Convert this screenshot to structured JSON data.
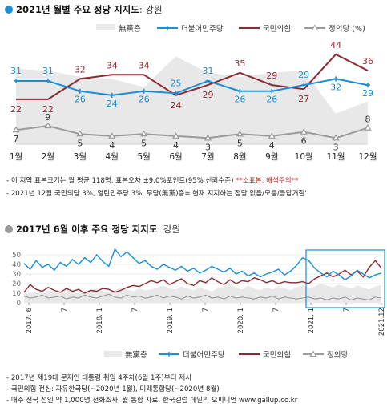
{
  "section1": {
    "title": "2021년 월별 주요 정당 지지도",
    "title_suffix": ": 강원",
    "title_dot_color": "#1a8fd8"
  },
  "section2": {
    "title": "2017년 6월 이후 주요 정당 지지도",
    "title_suffix": ": 강원",
    "title_dot_color": "#9a9a9a"
  },
  "notes1": {
    "line1_main": "- 이 지역 표본크기는 월 평균 118명, 표본오차 ±9.0%포인트(95% 신뢰수준) ",
    "line1_red": "**소표본, 해석주의**",
    "line2": "- 2021년 12월 국민의당 3%, 열린민주당 3%. 무당(無黨)층='현재 지지하는 정당 없음/모름/응답거절'"
  },
  "notes2": {
    "line1": "- 2017년 제19대 문재인 대통령 취임 4주차(6월 1주)부터 제시",
    "line2": "- 국민의힘 전신: 자유한국당(~2020년 1월), 미래통합당(~2020년 8월)",
    "line3": "- 매주 전국 성인 약 1,000명 전화조사, 월 통합 자료. 한국갤럽 데일리 오피니언 www.gallup.co.kr"
  },
  "colors": {
    "none": "#e8e8e8",
    "dem": "#1a8fd8",
    "ppp": "#8b2b34",
    "justice": "#9a9a9a"
  },
  "chart_data": [
    {
      "type": "line",
      "categories": [
        "1월",
        "2월",
        "3월",
        "4월",
        "5월",
        "6월",
        "7월",
        "8월",
        "9월",
        "10월",
        "11월",
        "12월"
      ],
      "legend_position": "top-right",
      "series": [
        {
          "name": "無黨층",
          "style": "area",
          "values": [
            37,
            36,
            33,
            32,
            28,
            43,
            35,
            33,
            35,
            36,
            15,
            21
          ]
        },
        {
          "name": "더불어민주당",
          "values": [
            31,
            31,
            26,
            24,
            26,
            25,
            31,
            26,
            26,
            29,
            32,
            29
          ]
        },
        {
          "name": "국민의힘",
          "values": [
            22,
            22,
            32,
            34,
            34,
            24,
            29,
            35,
            29,
            27,
            44,
            36
          ]
        },
        {
          "name": "정의당 (%)",
          "values": [
            7,
            9,
            5,
            4,
            5,
            4,
            3,
            5,
            4,
            6,
            3,
            8
          ]
        }
      ]
    },
    {
      "type": "line",
      "ylim": [
        0,
        50
      ],
      "yticks": [
        0,
        10,
        20,
        30,
        40,
        50
      ],
      "x_tick_labels": [
        "2017. 6",
        "7",
        "2018. 1",
        "7",
        "2019. 1",
        "7",
        "2020. 1",
        "7",
        "2021. 1",
        "7",
        "2021.12"
      ],
      "legend_position": "bottom",
      "highlight": "2021. 1 – 2021.12",
      "series": [
        {
          "name": "無黨층",
          "style": "area",
          "values": [
            10,
            9,
            12,
            10,
            13,
            11,
            9,
            14,
            12,
            10,
            11,
            13,
            15,
            12,
            11,
            13,
            16,
            14,
            12,
            15,
            13,
            14,
            16,
            18,
            15,
            14,
            17,
            15,
            13,
            16,
            14,
            12,
            15,
            17,
            19,
            16,
            14,
            18,
            15,
            13,
            16,
            14,
            17,
            15,
            13,
            16,
            18,
            15,
            17,
            20,
            18,
            16,
            19,
            17,
            15,
            18,
            16,
            14,
            17,
            19
          ]
        },
        {
          "name": "더불어민주당",
          "values": [
            41,
            35,
            44,
            37,
            40,
            34,
            42,
            38,
            45,
            40,
            47,
            42,
            50,
            43,
            38,
            56,
            48,
            53,
            47,
            41,
            44,
            38,
            35,
            40,
            37,
            34,
            38,
            33,
            36,
            31,
            34,
            38,
            35,
            32,
            36,
            30,
            33,
            28,
            31,
            27,
            30,
            32,
            35,
            29,
            33,
            39,
            47,
            44,
            36,
            31,
            27,
            33,
            29,
            24,
            28,
            34,
            30,
            26,
            29,
            31
          ]
        },
        {
          "name": "국민의힘",
          "values": [
            11,
            19,
            14,
            12,
            16,
            13,
            11,
            15,
            12,
            14,
            10,
            13,
            12,
            15,
            14,
            11,
            13,
            16,
            18,
            17,
            20,
            23,
            21,
            24,
            19,
            22,
            25,
            20,
            18,
            23,
            21,
            26,
            22,
            19,
            24,
            20,
            23,
            22,
            26,
            24,
            21,
            23,
            20,
            22,
            21,
            21,
            22,
            20,
            25,
            28,
            31,
            27,
            30,
            34,
            29,
            33,
            27,
            37,
            44,
            36
          ]
        },
        {
          "name": "정의당",
          "values": [
            7,
            5,
            6,
            8,
            5,
            6,
            7,
            4,
            6,
            5,
            8,
            6,
            5,
            7,
            9,
            6,
            5,
            8,
            6,
            7,
            5,
            6,
            8,
            5,
            7,
            6,
            4,
            7,
            5,
            6,
            8,
            5,
            6,
            4,
            7,
            5,
            6,
            5,
            4,
            6,
            5,
            7,
            4,
            6,
            5,
            4,
            5,
            6,
            4,
            5,
            3,
            5,
            4,
            6,
            3,
            5,
            4,
            3,
            6,
            5
          ]
        }
      ]
    }
  ]
}
